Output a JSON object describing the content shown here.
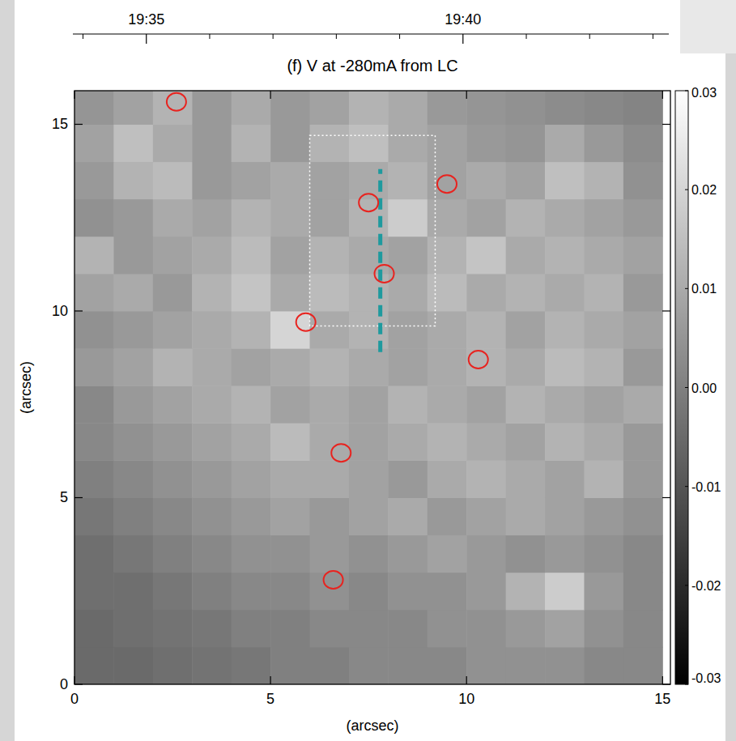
{
  "chart_data": {
    "type": "heatmap",
    "title": "(f) V at -280mA from LC",
    "x_label": "(arcsec)",
    "y_label": "(arcsec)",
    "xlim": [
      0,
      15.2
    ],
    "ylim": [
      0,
      15.9
    ],
    "xticks": [
      0,
      5,
      10,
      15
    ],
    "yticks": [
      0,
      5,
      10,
      15
    ],
    "heatmap": {
      "x": [
        0.5,
        1.5,
        2.5,
        3.5,
        4.5,
        5.5,
        6.5,
        7.5,
        8.5,
        9.5,
        10.5,
        11.5,
        12.5,
        13.5,
        14.5
      ],
      "y": [
        0.5,
        1.5,
        2.5,
        3.5,
        4.5,
        5.5,
        6.5,
        7.5,
        8.5,
        9.5,
        10.5,
        11.5,
        12.5,
        13.5,
        14.5,
        15.5
      ],
      "z": [
        [
          -0.005,
          -0.005,
          -0.004,
          -0.003,
          -0.002,
          0.0,
          0.0,
          0.002,
          0.002,
          0.002,
          0.004,
          0.004,
          0.004,
          0.002,
          0.002
        ],
        [
          -0.005,
          -0.004,
          -0.003,
          -0.002,
          0.0,
          0.0,
          0.002,
          0.002,
          0.002,
          0.004,
          0.004,
          0.006,
          0.008,
          0.004,
          0.002
        ],
        [
          -0.004,
          -0.004,
          -0.002,
          0.0,
          0.002,
          0.002,
          0.004,
          0.002,
          0.004,
          0.004,
          0.006,
          0.012,
          0.018,
          0.006,
          0.002
        ],
        [
          -0.004,
          -0.002,
          0.0,
          0.002,
          0.004,
          0.004,
          0.006,
          0.004,
          0.006,
          0.008,
          0.006,
          0.004,
          0.006,
          0.004,
          0.002
        ],
        [
          -0.002,
          0.0,
          0.002,
          0.004,
          0.006,
          0.008,
          0.006,
          0.008,
          0.01,
          0.006,
          0.008,
          0.01,
          0.008,
          0.006,
          0.004
        ],
        [
          0.0,
          0.002,
          0.004,
          0.006,
          0.008,
          0.01,
          0.01,
          0.008,
          0.006,
          0.01,
          0.012,
          0.01,
          0.008,
          0.012,
          0.006
        ],
        [
          0.002,
          0.004,
          0.006,
          0.008,
          0.01,
          0.014,
          0.01,
          0.008,
          0.01,
          0.012,
          0.01,
          0.008,
          0.012,
          0.01,
          0.006
        ],
        [
          0.002,
          0.006,
          0.008,
          0.01,
          0.012,
          0.008,
          0.01,
          0.008,
          0.012,
          0.01,
          0.008,
          0.012,
          0.01,
          0.008,
          0.01
        ],
        [
          0.006,
          0.008,
          0.012,
          0.01,
          0.008,
          0.01,
          0.012,
          0.01,
          0.008,
          0.01,
          0.012,
          0.01,
          0.014,
          0.012,
          0.006
        ],
        [
          0.004,
          0.006,
          0.008,
          0.01,
          0.012,
          0.02,
          0.01,
          0.012,
          0.008,
          0.01,
          0.012,
          0.008,
          0.012,
          0.01,
          0.008
        ],
        [
          0.008,
          0.01,
          0.006,
          0.012,
          0.016,
          0.01,
          0.014,
          0.012,
          0.01,
          0.014,
          0.01,
          0.012,
          0.01,
          0.012,
          0.006
        ],
        [
          0.012,
          0.006,
          0.008,
          0.01,
          0.014,
          0.008,
          0.012,
          0.01,
          0.008,
          0.012,
          0.016,
          0.01,
          0.012,
          0.01,
          0.008
        ],
        [
          0.004,
          0.006,
          0.01,
          0.008,
          0.012,
          0.01,
          0.008,
          0.012,
          0.018,
          0.01,
          0.008,
          0.012,
          0.01,
          0.008,
          0.006
        ],
        [
          0.006,
          0.012,
          0.014,
          0.006,
          0.008,
          0.01,
          0.008,
          0.01,
          0.012,
          0.008,
          0.01,
          0.008,
          0.015,
          0.012,
          0.004
        ],
        [
          0.008,
          0.015,
          0.01,
          0.006,
          0.012,
          0.006,
          0.012,
          0.015,
          0.01,
          0.008,
          0.006,
          0.005,
          0.01,
          0.006,
          0.003
        ],
        [
          0.005,
          0.008,
          0.012,
          0.006,
          0.01,
          0.006,
          0.008,
          0.012,
          0.01,
          0.006,
          0.005,
          0.004,
          0.003,
          0.002,
          0.001
        ]
      ]
    },
    "colorbar": {
      "range": [
        -0.03,
        0.03
      ],
      "ticks": [
        -0.03,
        -0.02,
        -0.01,
        {
          "value": 0,
          "label": "0.00"
        },
        0.01,
        0.02,
        0.03
      ]
    },
    "time_axis": {
      "lim": [
        33.84,
        43.25
      ],
      "ticks": [
        {
          "value": 35,
          "label": "19:35"
        },
        {
          "value": 40,
          "label": "19:40"
        }
      ],
      "minor_ticks": [
        34,
        36,
        37,
        38,
        39,
        41,
        42,
        43
      ]
    },
    "contours": {
      "x": [
        2.6,
        7.5,
        7.9,
        5.9,
        10.3,
        6.8,
        6.6,
        9.5
      ],
      "y": [
        15.6,
        12.9,
        11.0,
        9.7,
        8.7,
        6.2,
        2.8,
        13.4
      ],
      "color": "#e8231f"
    },
    "cut": {
      "x": [
        7.8,
        7.8
      ],
      "y": [
        8.9,
        13.8
      ],
      "color": "#1e9a9e",
      "line_style": "dashed"
    },
    "box": {
      "x": [
        6.0,
        9.2
      ],
      "y": [
        9.6,
        14.7
      ],
      "color": "#ffffff",
      "line_style": "dotted"
    }
  }
}
